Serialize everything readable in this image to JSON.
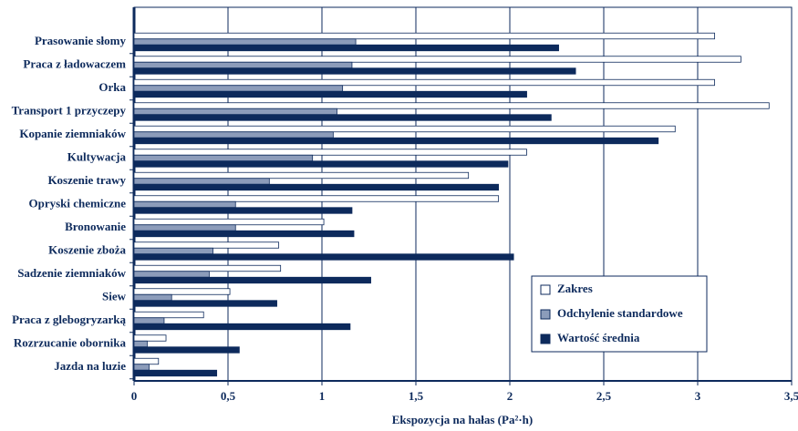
{
  "chart_data": {
    "type": "barh",
    "x_label": "Ekspozycja na hałas (Pa²·h)",
    "categories": [
      "Prasowanie słomy",
      "Praca z ładowaczem",
      "Orka",
      "Transport 1 przyczepy",
      "Kopanie ziemniaków",
      "Kultywacja",
      "Koszenie trawy",
      "Opryski chemiczne",
      "Bronowanie",
      "Koszenie zboża",
      "Sadzenie ziemniaków",
      "Siew",
      "Praca z glebogryzarką",
      "Rozrzucanie obornika",
      "Jazda na luzie"
    ],
    "series": [
      {
        "name": "Zakres",
        "color": "#ffffff",
        "values": [
          3.09,
          3.23,
          3.09,
          3.38,
          2.88,
          2.09,
          1.78,
          1.94,
          1.01,
          0.77,
          0.78,
          0.51,
          0.37,
          0.17,
          0.13
        ]
      },
      {
        "name": "Odchylenie standardowe",
        "color": "#8c9cba",
        "values": [
          1.18,
          1.16,
          1.11,
          1.08,
          1.06,
          0.95,
          0.72,
          0.54,
          0.54,
          0.42,
          0.4,
          0.2,
          0.16,
          0.07,
          0.08
        ]
      },
      {
        "name": "Wartość średnia",
        "color": "#0d2a5c",
        "values": [
          2.26,
          2.35,
          2.09,
          2.22,
          2.79,
          1.99,
          1.94,
          1.16,
          1.17,
          2.02,
          1.26,
          0.76,
          1.15,
          0.56,
          0.44
        ]
      }
    ],
    "xlim": [
      0,
      3.5
    ],
    "xticks": [
      0,
      {
        "value": 0.5,
        "label": "0,5"
      },
      1,
      {
        "value": 1.5,
        "label": "1,5"
      },
      2,
      {
        "value": 2.5,
        "label": "2,5"
      },
      3,
      {
        "value": 3.5,
        "label": "3,5"
      }
    ],
    "grid": true,
    "legend": "lower-right"
  }
}
